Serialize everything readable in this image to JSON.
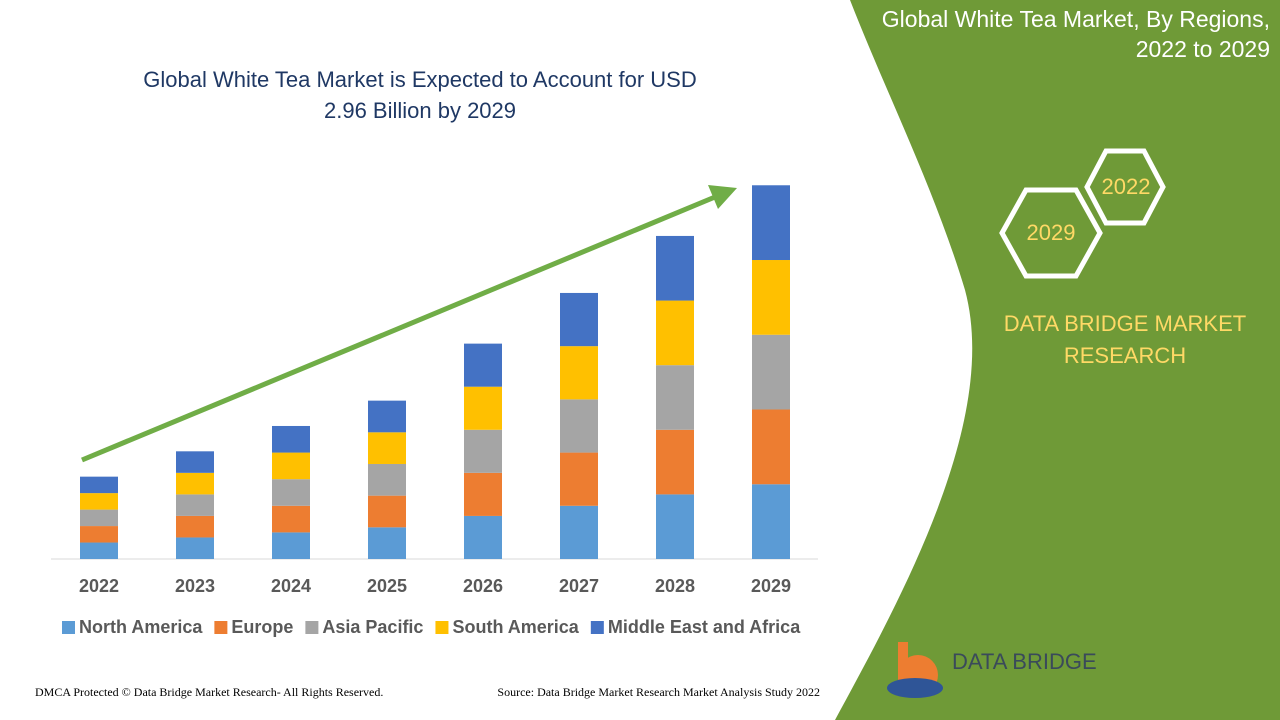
{
  "chart_data": {
    "type": "bar",
    "stacked": true,
    "title": "Global White Tea Market is Expected to Account for USD 2.96 Billion by 2029",
    "categories": [
      "2022",
      "2023",
      "2024",
      "2025",
      "2026",
      "2027",
      "2028",
      "2029"
    ],
    "series": [
      {
        "name": "North America",
        "color": "#5b9bd5",
        "values": [
          0.13,
          0.17,
          0.21,
          0.25,
          0.34,
          0.42,
          0.51,
          0.59
        ]
      },
      {
        "name": "Europe",
        "color": "#ed7d31",
        "values": [
          0.13,
          0.17,
          0.21,
          0.25,
          0.34,
          0.42,
          0.51,
          0.59
        ]
      },
      {
        "name": "Asia Pacific",
        "color": "#a5a5a5",
        "values": [
          0.13,
          0.17,
          0.21,
          0.25,
          0.34,
          0.42,
          0.51,
          0.59
        ]
      },
      {
        "name": "South America",
        "color": "#ffc000",
        "values": [
          0.13,
          0.17,
          0.21,
          0.25,
          0.34,
          0.42,
          0.51,
          0.59
        ]
      },
      {
        "name": "Middle East and Africa",
        "color": "#4472c4",
        "values": [
          0.13,
          0.17,
          0.21,
          0.25,
          0.34,
          0.42,
          0.51,
          0.59
        ]
      }
    ],
    "ylim": [
      0,
      2.96
    ]
  },
  "panel": {
    "title": "Global White Tea Market, By Regions, 2022 to 2029",
    "hexagons": [
      "2022",
      "2029"
    ],
    "brand": "DATA BRIDGE MARKET RESEARCH",
    "logo": "DATA BRIDGE"
  },
  "footer": {
    "left": "DMCA Protected © Data Bridge Market Research- All Rights Reserved.",
    "right": "Source: Data Bridge Market Research Market Analysis Study 2022"
  }
}
